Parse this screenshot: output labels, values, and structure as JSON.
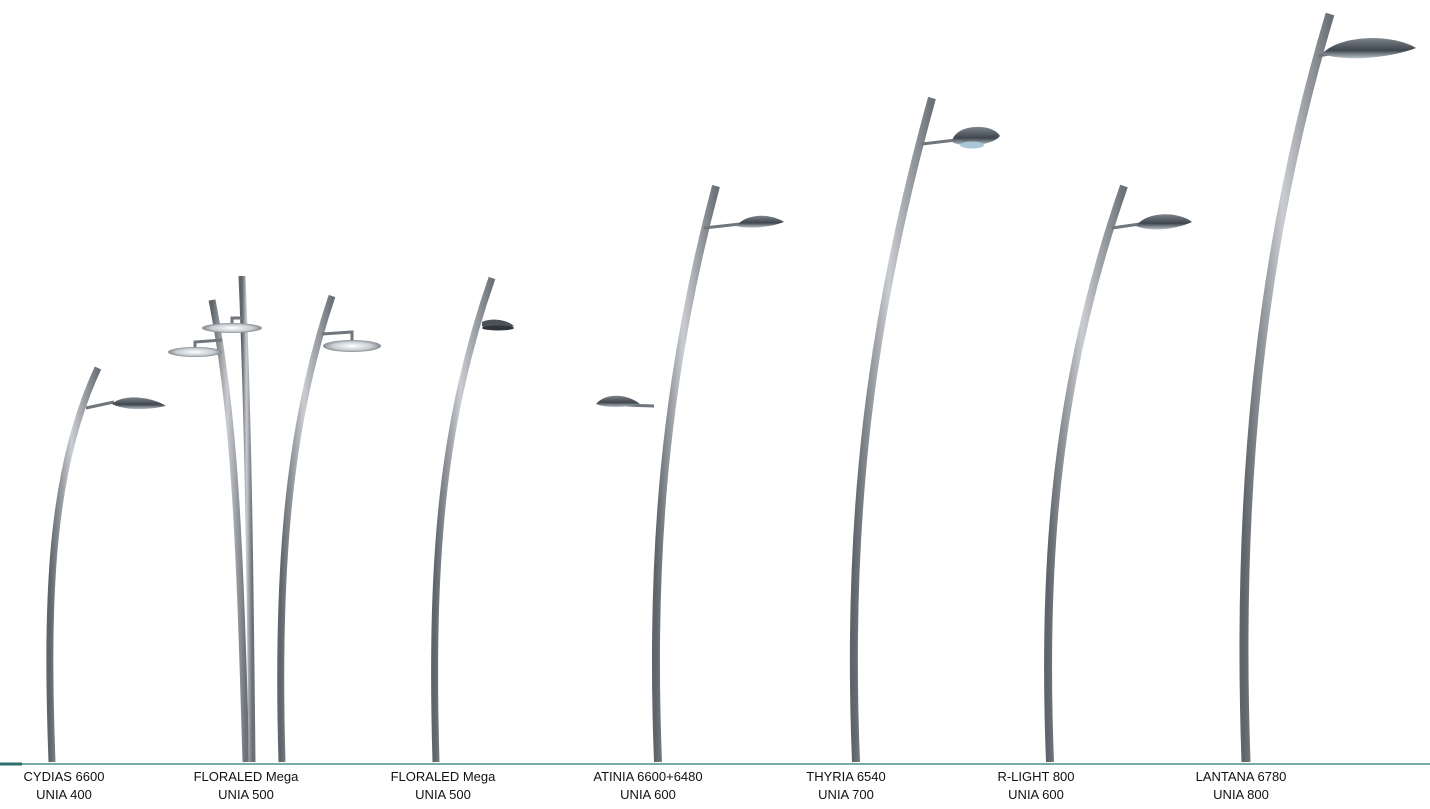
{
  "colors": {
    "pole": "#8a8f94",
    "lamp": "#5e6670",
    "baseline": "#4a8f8c",
    "text": "#111111",
    "background": "#ffffff"
  },
  "products": [
    {
      "name": "CYDIAS 6600",
      "model": "UNIA 400"
    },
    {
      "name": "FLORALED Mega",
      "model": "UNIA 500"
    },
    {
      "name": "FLORALED Mega",
      "model": "UNIA 500"
    },
    {
      "name": "ATINIA 6600+6480",
      "model": "UNIA 600"
    },
    {
      "name": "THYRIA 6540",
      "model": "UNIA 700"
    },
    {
      "name": "R-LIGHT 800",
      "model": "UNIA 600"
    },
    {
      "name": "LANTANA 6780",
      "model": "UNIA 800"
    }
  ]
}
